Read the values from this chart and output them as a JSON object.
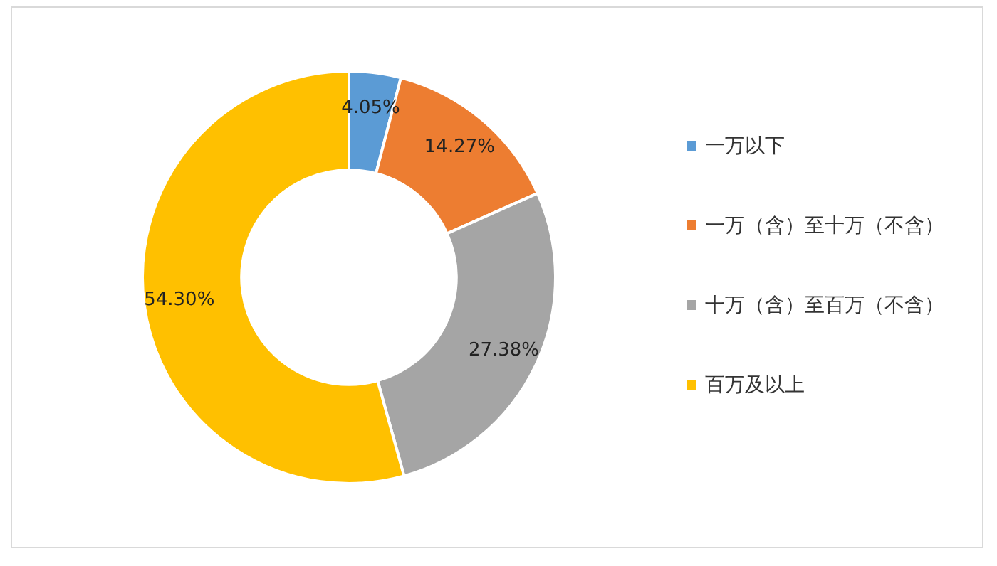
{
  "chart_data": {
    "type": "donut",
    "categories": [
      "一万以下",
      "一万（含）至十万（不含）",
      "十万（含）至百万（不含）",
      "百万及以上"
    ],
    "values": [
      4.05,
      14.27,
      27.38,
      54.3
    ],
    "value_labels": [
      "4.05%",
      "14.27%",
      "27.38%",
      "54.30%"
    ],
    "colors": [
      "#5b9bd5",
      "#ed7d31",
      "#a5a5a5",
      "#ffc000"
    ],
    "legend": "right"
  }
}
